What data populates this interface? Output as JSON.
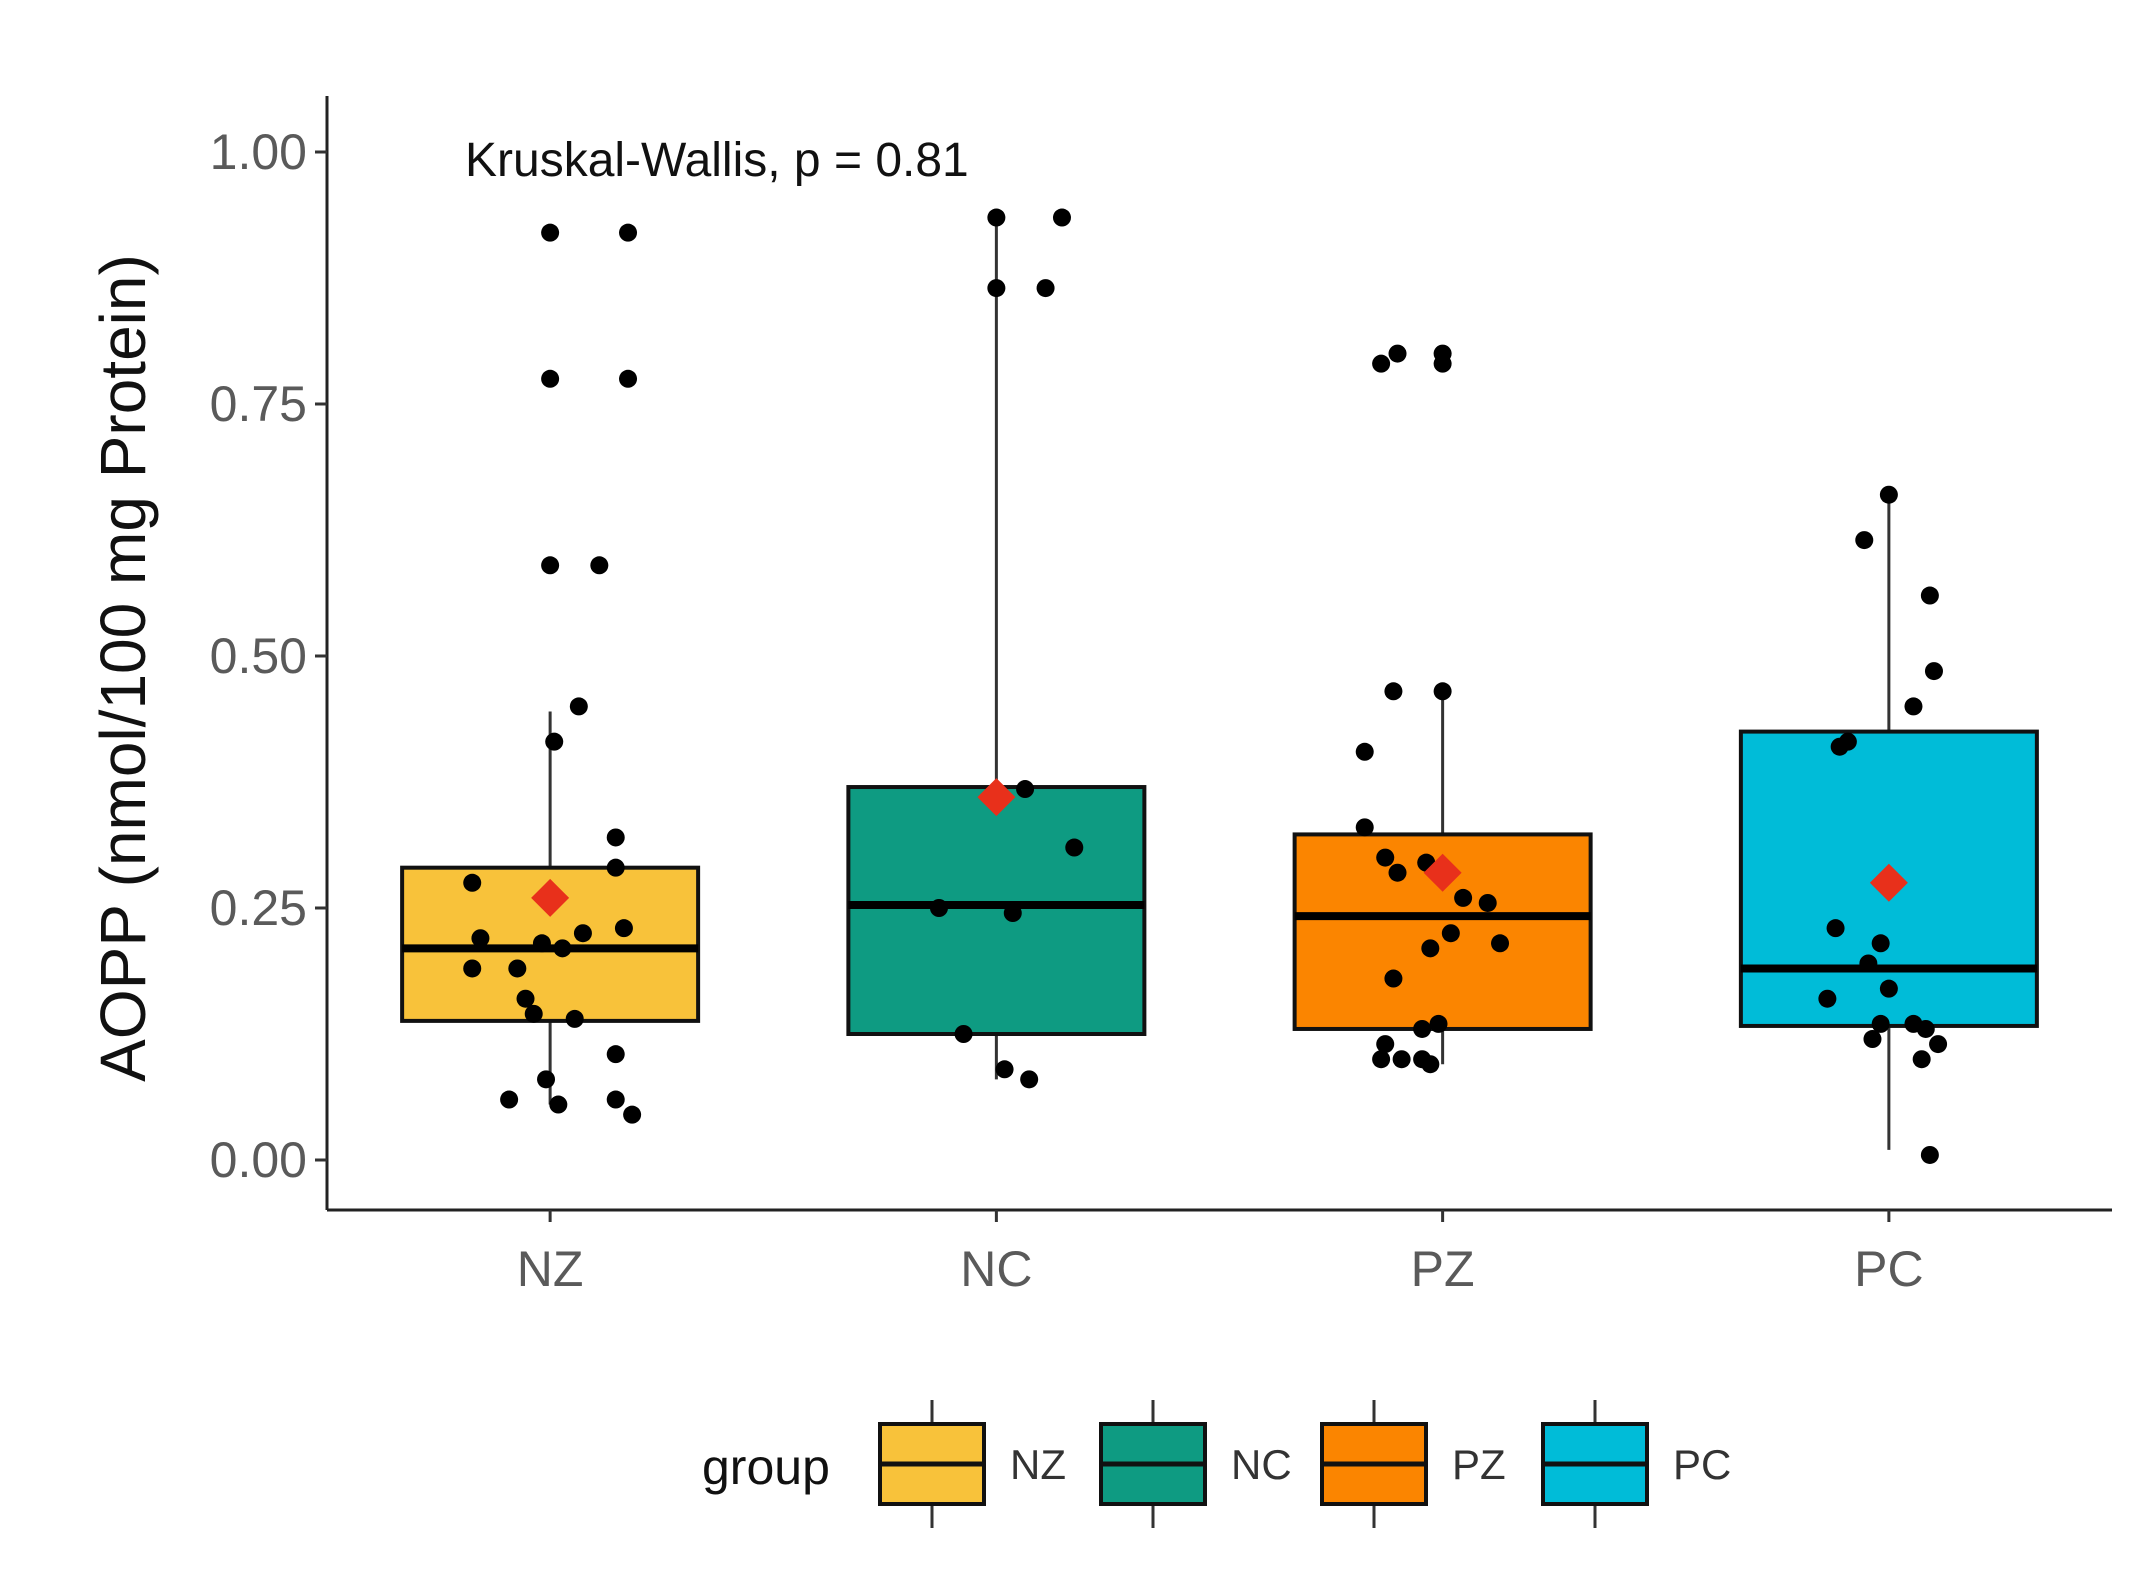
{
  "chart_data": {
    "type": "boxplot",
    "title": "",
    "xlabel": "",
    "ylabel": "AOPP (nmol/100 mg Protein)",
    "ylim": [
      -0.045,
      1.05
    ],
    "yticks": [
      {
        "value": 0.0,
        "label": "0.00"
      },
      {
        "value": 0.25,
        "label": "0.25"
      },
      {
        "value": 0.5,
        "label": "0.50"
      },
      {
        "value": 0.75,
        "label": "0.75"
      },
      {
        "value": 1.0,
        "label": "1.00"
      }
    ],
    "annotation": "Kruskal-Wallis, p = 0.81",
    "legend": {
      "title": "group",
      "position": "bottom"
    },
    "mean_marker_color": "#e8301b",
    "point_color": "#000000",
    "groups": [
      {
        "name": "NZ",
        "color": "#f8c23a",
        "q1": 0.138,
        "median": 0.21,
        "q3": 0.29,
        "whisker_low": 0.055,
        "whisker_high": 0.445,
        "mean": 0.26,
        "points": [
          [
            0.0,
            0.92
          ],
          [
            0.19,
            0.92
          ],
          [
            0.0,
            0.775
          ],
          [
            0.19,
            0.775
          ],
          [
            0.0,
            0.59
          ],
          [
            0.12,
            0.59
          ],
          [
            0.07,
            0.45
          ],
          [
            0.01,
            0.415
          ],
          [
            0.16,
            0.32
          ],
          [
            0.16,
            0.29
          ],
          [
            -0.19,
            0.275
          ],
          [
            -0.17,
            0.22
          ],
          [
            -0.08,
            0.19
          ],
          [
            -0.19,
            0.19
          ],
          [
            -0.02,
            0.215
          ],
          [
            0.03,
            0.21
          ],
          [
            0.08,
            0.225
          ],
          [
            0.18,
            0.23
          ],
          [
            -0.06,
            0.16
          ],
          [
            -0.04,
            0.145
          ],
          [
            0.06,
            0.14
          ],
          [
            0.16,
            0.105
          ],
          [
            -0.01,
            0.08
          ],
          [
            -0.1,
            0.06
          ],
          [
            0.02,
            0.055
          ],
          [
            0.16,
            0.06
          ],
          [
            0.2,
            0.045
          ]
        ]
      },
      {
        "name": "NC",
        "color": "#0e9b82",
        "q1": 0.125,
        "median": 0.253,
        "q3": 0.37,
        "whisker_low": 0.08,
        "whisker_high": 0.935,
        "mean": 0.36,
        "points": [
          [
            0.0,
            0.935
          ],
          [
            0.16,
            0.935
          ],
          [
            0.0,
            0.865
          ],
          [
            0.12,
            0.865
          ],
          [
            0.07,
            0.368
          ],
          [
            0.19,
            0.31
          ],
          [
            -0.14,
            0.25
          ],
          [
            0.04,
            0.245
          ],
          [
            -0.08,
            0.125
          ],
          [
            0.02,
            0.09
          ],
          [
            0.08,
            0.08
          ]
        ]
      },
      {
        "name": "PZ",
        "color": "#fb8500",
        "q1": 0.13,
        "median": 0.242,
        "q3": 0.323,
        "whisker_low": 0.095,
        "whisker_high": 0.465,
        "mean": 0.285,
        "points": [
          [
            -0.15,
            0.79
          ],
          [
            -0.11,
            0.8
          ],
          [
            0.0,
            0.8
          ],
          [
            0.0,
            0.79
          ],
          [
            -0.12,
            0.465
          ],
          [
            0.0,
            0.465
          ],
          [
            -0.19,
            0.405
          ],
          [
            -0.19,
            0.33
          ],
          [
            -0.14,
            0.3
          ],
          [
            -0.11,
            0.285
          ],
          [
            -0.04,
            0.295
          ],
          [
            0.05,
            0.26
          ],
          [
            0.11,
            0.255
          ],
          [
            0.14,
            0.215
          ],
          [
            0.02,
            0.225
          ],
          [
            -0.03,
            0.21
          ],
          [
            -0.12,
            0.18
          ],
          [
            -0.05,
            0.13
          ],
          [
            -0.01,
            0.135
          ],
          [
            -0.14,
            0.115
          ],
          [
            -0.1,
            0.1
          ],
          [
            -0.15,
            0.1
          ],
          [
            -0.05,
            0.1
          ],
          [
            -0.03,
            0.095
          ]
        ]
      },
      {
        "name": "PC",
        "color": "#00bcd8",
        "q1": 0.133,
        "median": 0.19,
        "q3": 0.425,
        "whisker_low": 0.01,
        "whisker_high": 0.66,
        "mean": 0.275,
        "points": [
          [
            0.0,
            0.66
          ],
          [
            -0.06,
            0.615
          ],
          [
            0.1,
            0.56
          ],
          [
            0.11,
            0.485
          ],
          [
            0.06,
            0.45
          ],
          [
            -0.1,
            0.415
          ],
          [
            -0.12,
            0.41
          ],
          [
            -0.13,
            0.23
          ],
          [
            -0.02,
            0.215
          ],
          [
            -0.05,
            0.195
          ],
          [
            -0.15,
            0.16
          ],
          [
            0.0,
            0.17
          ],
          [
            -0.02,
            0.135
          ],
          [
            0.06,
            0.135
          ],
          [
            0.09,
            0.13
          ],
          [
            -0.04,
            0.12
          ],
          [
            0.12,
            0.115
          ],
          [
            0.08,
            0.1
          ],
          [
            0.1,
            0.005
          ]
        ]
      }
    ]
  }
}
